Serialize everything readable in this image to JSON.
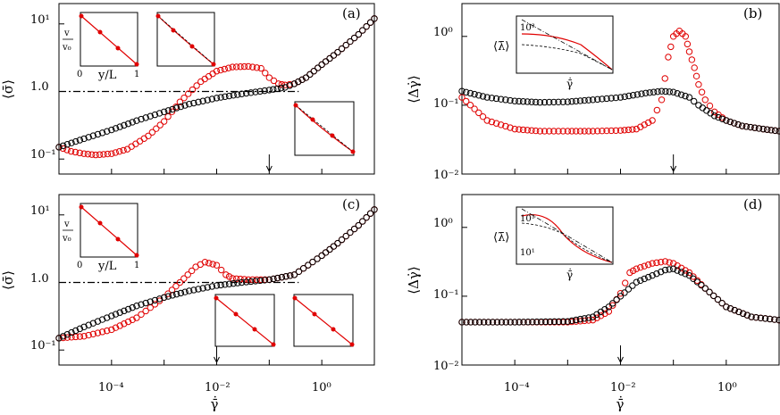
{
  "chart_data": [
    {
      "panel": "a",
      "type": "scatter",
      "panel_label": "(a)",
      "xlabel": "γ̄̇",
      "ylabel": "⟨σ̄⟩",
      "xscale": "log",
      "yscale": "log",
      "xlim": [
        1e-05,
        10
      ],
      "ylim": [
        0.06,
        20
      ],
      "x_ticks": [
        "10^-4",
        "10^-2",
        "10^0"
      ],
      "y_ticks": [
        "10^-1",
        "1.0",
        "10^1"
      ],
      "series": [
        {
          "color": "#e00000",
          "marker": "open-circle",
          "x": [
            1e-05,
            1.7e-05,
            3e-05,
            5e-05,
            0.0001,
            0.0002,
            0.0005,
            0.001,
            0.002,
            0.005,
            0.01,
            0.02,
            0.04,
            0.07,
            0.1,
            0.15,
            0.2,
            0.3,
            0.5,
            1,
            2,
            5,
            10
          ],
          "y": [
            0.15,
            0.13,
            0.12,
            0.115,
            0.12,
            0.14,
            0.22,
            0.36,
            0.7,
            1.4,
            2.0,
            2.3,
            2.35,
            2.2,
            1.6,
            1.3,
            1.25,
            1.3,
            1.6,
            2.5,
            3.8,
            7,
            12
          ]
        },
        {
          "color": "#000000",
          "marker": "open-circle",
          "x": [
            1e-05,
            3e-05,
            0.0001,
            0.0003,
            0.001,
            0.003,
            0.01,
            0.03,
            0.1,
            0.2,
            0.3,
            0.5,
            1,
            2,
            5,
            10
          ],
          "y": [
            0.15,
            0.2,
            0.27,
            0.37,
            0.5,
            0.65,
            0.8,
            0.92,
            1.05,
            1.15,
            1.3,
            1.6,
            2.5,
            3.8,
            7,
            12
          ]
        }
      ],
      "reference_line": {
        "y": 1.0,
        "style": "dash-dot"
      },
      "arrow_marker_x": 0.1
    },
    {
      "panel": "b",
      "type": "scatter",
      "panel_label": "(b)",
      "xlabel": "",
      "ylabel": "⟨Δγ̇⟩",
      "xscale": "log",
      "yscale": "log",
      "xlim": [
        1e-05,
        10
      ],
      "ylim": [
        0.01,
        3
      ],
      "x_ticks": [],
      "y_ticks": [
        "10^-2",
        "10^-1",
        "10^0"
      ],
      "series": [
        {
          "color": "#e00000",
          "marker": "open-circle",
          "x": [
            1e-05,
            3e-05,
            0.0001,
            0.0003,
            0.001,
            0.003,
            0.01,
            0.02,
            0.04,
            0.06,
            0.08,
            0.1,
            0.13,
            0.17,
            0.2,
            0.25,
            0.3,
            0.4,
            0.6,
            1,
            2,
            5,
            10
          ],
          "y": [
            0.13,
            0.06,
            0.045,
            0.042,
            0.042,
            0.042,
            0.043,
            0.045,
            0.06,
            0.12,
            0.5,
            1.0,
            1.2,
            1.0,
            0.6,
            0.35,
            0.2,
            0.12,
            0.08,
            0.06,
            0.05,
            0.045,
            0.042
          ]
        },
        {
          "color": "#000000",
          "marker": "open-circle",
          "x": [
            1e-05,
            3e-05,
            0.0001,
            0.0003,
            0.001,
            0.003,
            0.01,
            0.03,
            0.06,
            0.1,
            0.2,
            0.3,
            0.6,
            1,
            2,
            5,
            10
          ],
          "y": [
            0.16,
            0.13,
            0.115,
            0.11,
            0.112,
            0.12,
            0.13,
            0.15,
            0.16,
            0.155,
            0.13,
            0.1,
            0.07,
            0.06,
            0.05,
            0.045,
            0.042
          ]
        }
      ],
      "arrow_marker_x": 0.1
    },
    {
      "panel": "c",
      "type": "scatter",
      "panel_label": "(c)",
      "xlabel": "γ̄̇",
      "ylabel": "⟨σ̄⟩",
      "xscale": "log",
      "yscale": "log",
      "xlim": [
        1e-05,
        10
      ],
      "ylim": [
        0.06,
        20
      ],
      "x_ticks": [
        "10^-4",
        "10^-2",
        "10^0"
      ],
      "y_ticks": [
        "10^-1",
        "1.0",
        "10^1"
      ],
      "series": [
        {
          "color": "#e00000",
          "marker": "open-circle",
          "x": [
            1e-05,
            3e-05,
            0.0001,
            0.0003,
            0.001,
            0.002,
            0.004,
            0.006,
            0.01,
            0.015,
            0.02,
            0.04,
            0.1,
            0.3,
            1,
            2,
            5,
            10
          ],
          "y": [
            0.15,
            0.16,
            0.2,
            0.3,
            0.6,
            1.0,
            1.7,
            2.0,
            1.8,
            1.3,
            1.15,
            1.1,
            1.1,
            1.3,
            2.5,
            3.8,
            7,
            12
          ]
        },
        {
          "color": "#000000",
          "marker": "open-circle",
          "x": [
            1e-05,
            3e-05,
            0.0001,
            0.0003,
            0.001,
            0.003,
            0.01,
            0.03,
            0.1,
            0.3,
            1,
            2,
            5,
            10
          ],
          "y": [
            0.15,
            0.22,
            0.32,
            0.45,
            0.6,
            0.75,
            0.9,
            1.0,
            1.1,
            1.3,
            2.5,
            3.8,
            7,
            12
          ]
        }
      ],
      "reference_line": {
        "y": 1.0,
        "style": "dash-dot"
      },
      "arrow_marker_x": 0.01
    },
    {
      "panel": "d",
      "type": "scatter",
      "panel_label": "(d)",
      "xlabel": "γ̄̇",
      "ylabel": "⟨Δγ̇⟩",
      "xscale": "log",
      "yscale": "log",
      "xlim": [
        1e-05,
        10
      ],
      "ylim": [
        0.01,
        3
      ],
      "x_ticks": [
        "10^-4",
        "10^-2",
        "10^0"
      ],
      "y_ticks": [
        "10^-2",
        "10^-1",
        "10^0"
      ],
      "series": [
        {
          "color": "#e00000",
          "marker": "open-circle",
          "x": [
            1e-05,
            0.0001,
            0.001,
            0.003,
            0.006,
            0.01,
            0.015,
            0.02,
            0.04,
            0.07,
            0.1,
            0.2,
            0.4,
            1,
            3,
            10
          ],
          "y": [
            0.042,
            0.042,
            0.042,
            0.045,
            0.06,
            0.11,
            0.22,
            0.25,
            0.3,
            0.32,
            0.3,
            0.22,
            0.13,
            0.07,
            0.05,
            0.045
          ]
        },
        {
          "color": "#000000",
          "marker": "open-circle",
          "x": [
            1e-05,
            0.0001,
            0.001,
            0.003,
            0.006,
            0.01,
            0.02,
            0.04,
            0.07,
            0.1,
            0.2,
            0.4,
            1,
            3,
            10
          ],
          "y": [
            0.042,
            0.042,
            0.043,
            0.05,
            0.07,
            0.1,
            0.16,
            0.2,
            0.24,
            0.25,
            0.2,
            0.13,
            0.07,
            0.05,
            0.045
          ]
        }
      ],
      "arrow_marker_x": 0.01
    }
  ],
  "labels": {
    "a": "(a)",
    "b": "(b)",
    "c": "(c)",
    "d": "(d)",
    "ylabel_sigma": "⟨σ̄⟩",
    "ylabel_dgamma": "⟨Δγ̇⟩",
    "xlabel": "γ̄̇",
    "inset_v": "v",
    "inset_v0": "v₀",
    "inset_yL": "y/L",
    "inset_lambda": "⟨λ̄⟩",
    "inset_gamma": "γ̄̇",
    "inset_zero": "0",
    "inset_one": "1",
    "inset_tick_3": "10³",
    "inset_tick_1": "10¹",
    "tick_m4": "10⁻⁴",
    "tick_m2": "10⁻²",
    "tick_0": "10⁰",
    "tick_m1": "10⁻¹",
    "tick_1": "1.0",
    "tick_p1": "10¹"
  }
}
